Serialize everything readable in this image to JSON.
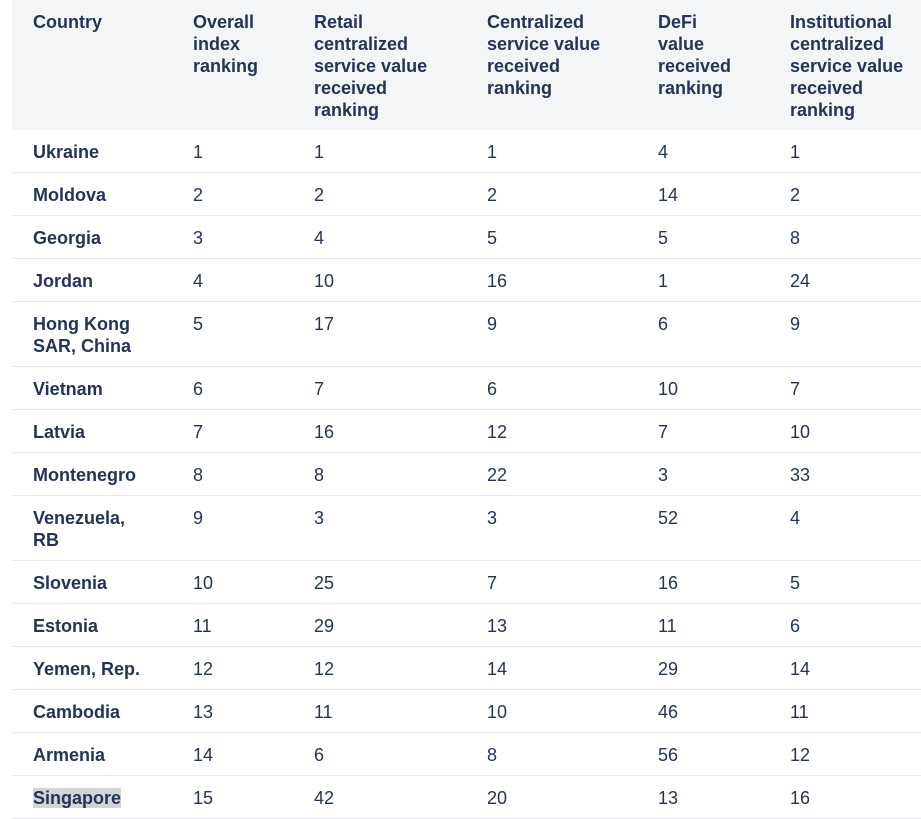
{
  "table": {
    "header": [
      "Country",
      "Overall index ranking",
      "Retail centralized service value received ranking",
      "Centralized service value received ranking",
      "DeFi value received ranking",
      "Institutional centralized service value received ranking"
    ],
    "rows": [
      [
        "Ukraine",
        1,
        1,
        1,
        4,
        1
      ],
      [
        "Moldova",
        2,
        2,
        2,
        14,
        2
      ],
      [
        "Georgia",
        3,
        4,
        5,
        5,
        8
      ],
      [
        "Jordan",
        4,
        10,
        16,
        1,
        24
      ],
      [
        "Hong Kong SAR, China",
        5,
        17,
        9,
        6,
        9
      ],
      [
        "Vietnam",
        6,
        7,
        6,
        10,
        7
      ],
      [
        "Latvia",
        7,
        16,
        12,
        7,
        10
      ],
      [
        "Montenegro",
        8,
        8,
        22,
        3,
        33
      ],
      [
        "Venezuela, RB",
        9,
        3,
        3,
        52,
        4
      ],
      [
        "Slovenia",
        10,
        25,
        7,
        16,
        5
      ],
      [
        "Estonia",
        11,
        29,
        13,
        11,
        6
      ],
      [
        "Yemen, Rep.",
        12,
        12,
        14,
        29,
        14
      ],
      [
        "Cambodia",
        13,
        11,
        10,
        46,
        11
      ],
      [
        "Armenia",
        14,
        6,
        8,
        56,
        12
      ],
      [
        "Singapore",
        15,
        42,
        20,
        13,
        16
      ]
    ]
  }
}
